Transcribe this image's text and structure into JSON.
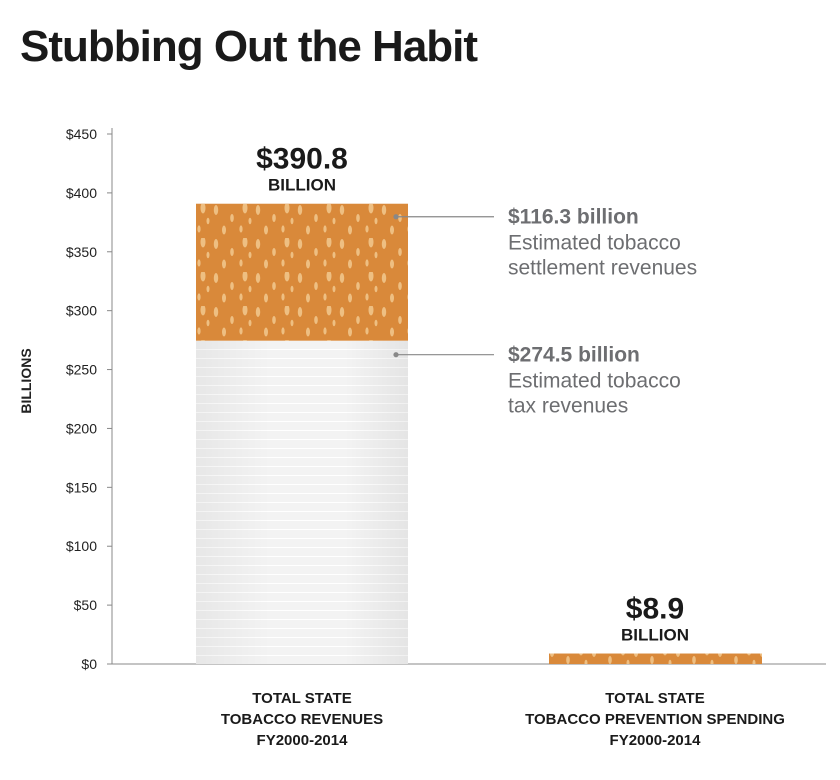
{
  "title": "Stubbing Out the Habit",
  "colors": {
    "filter": "#d9893a",
    "filter_spot": "#f2c98f",
    "paper": "#f4f4f4",
    "paper_line": "#ffffff",
    "axis": "#888888",
    "annotation": "#6d6e71"
  },
  "chart_data": {
    "type": "bar",
    "stacked": true,
    "ylabel": "BILLIONS",
    "ylim": [
      0,
      450
    ],
    "yticks": [
      0,
      50,
      100,
      150,
      200,
      250,
      300,
      350,
      400,
      450
    ],
    "ytick_labels": [
      "$0",
      "$50",
      "$100",
      "$150",
      "$200",
      "$250",
      "$300",
      "$350",
      "$400",
      "$450"
    ],
    "grid": false,
    "categories": [
      {
        "lines": [
          "TOTAL STATE",
          "TOBACCO REVENUES",
          "FY2000-2014"
        ]
      },
      {
        "lines": [
          "TOTAL STATE",
          "TOBACCO PREVENTION SPENDING",
          "FY2000-2014"
        ]
      }
    ],
    "bars": [
      {
        "total": 390.8,
        "total_label": {
          "value": "$390.8",
          "unit": "BILLION"
        },
        "segments": [
          {
            "value": 274.5,
            "style": "paper",
            "annotation": {
              "value": "$274.5 billion",
              "desc": [
                "Estimated tobacco",
                "tax revenues"
              ]
            }
          },
          {
            "value": 116.3,
            "style": "filter",
            "annotation": {
              "value": "$116.3 billion",
              "desc": [
                "Estimated tobacco",
                "settlement revenues"
              ]
            }
          }
        ]
      },
      {
        "total": 8.9,
        "total_label": {
          "value": "$8.9",
          "unit": "BILLION"
        },
        "segments": [
          {
            "value": 8.9,
            "style": "filter"
          }
        ]
      }
    ]
  }
}
